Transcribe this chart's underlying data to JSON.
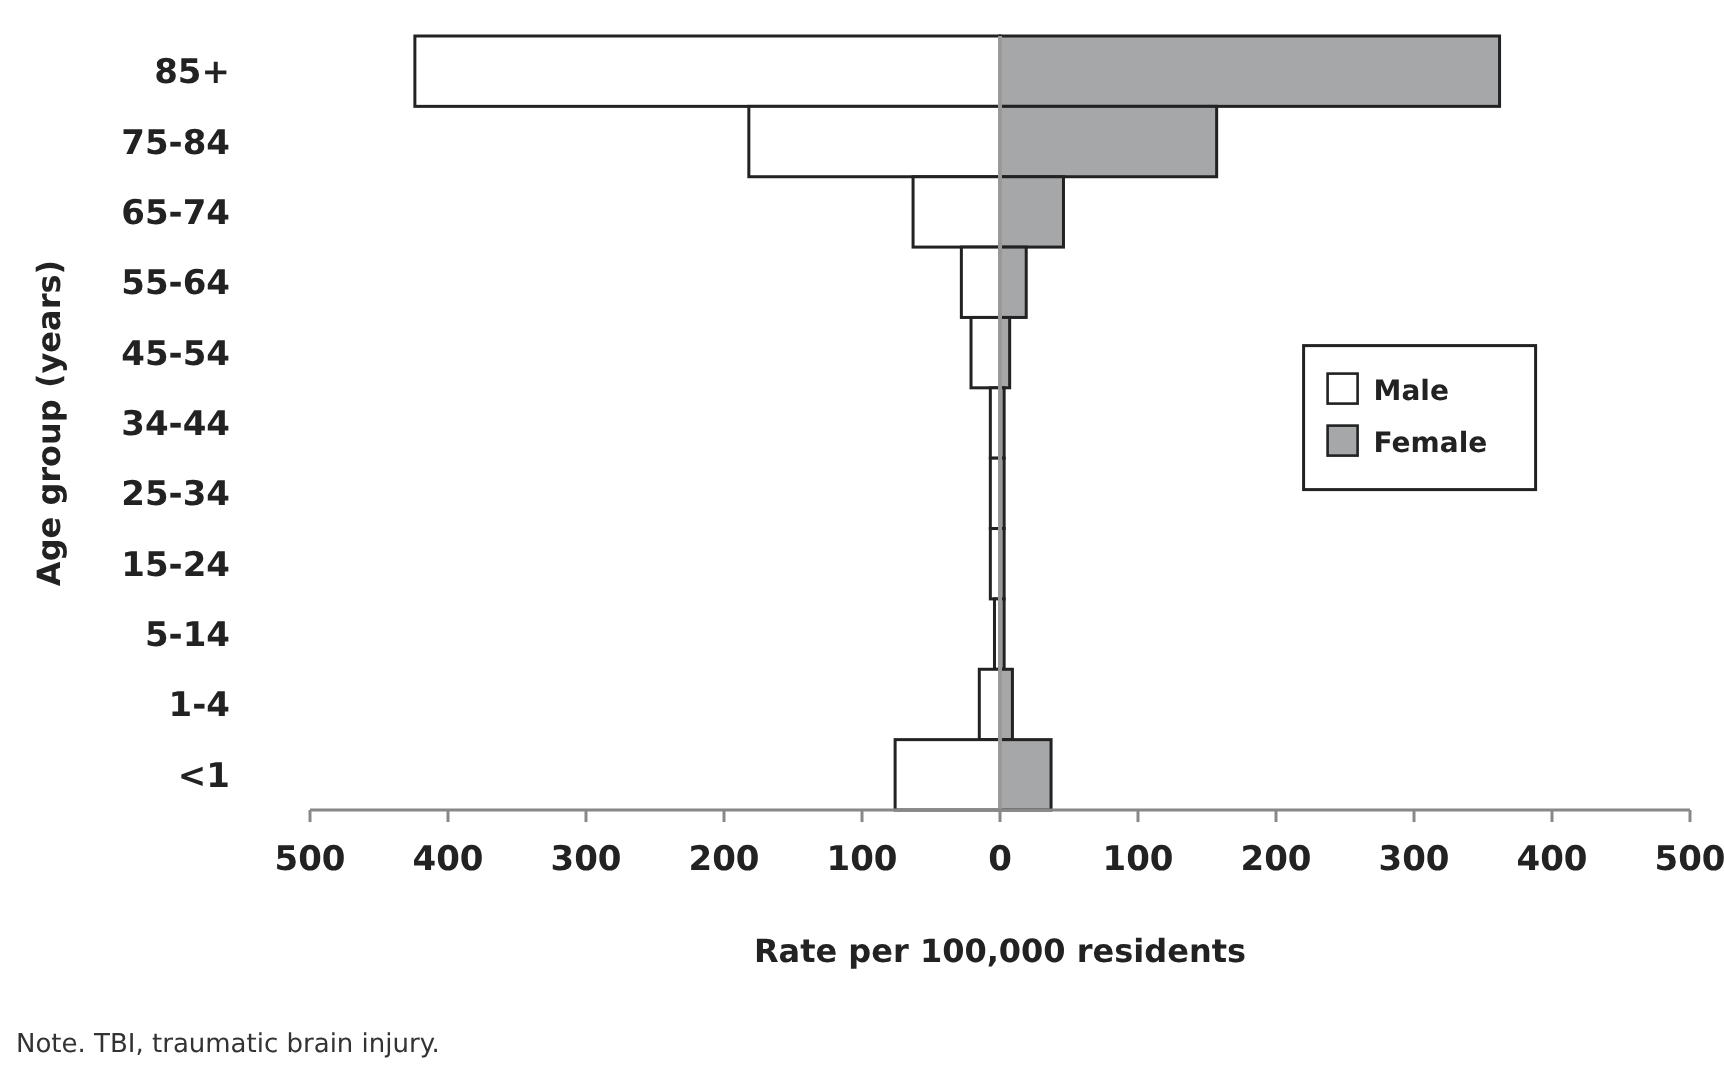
{
  "chart_data": {
    "type": "bar",
    "orientation": "horizontal",
    "stacked": true,
    "categories": [
      "85+",
      "75-84",
      "65-74",
      "55-64",
      "45-54",
      "34-44",
      "25-34",
      "15-24",
      "5-14",
      "1-4",
      "<1"
    ],
    "series": [
      {
        "name": "Male",
        "color": "#ffffff",
        "values": [
          -424,
          -182,
          -63,
          -28,
          -21,
          -7,
          -7,
          -7,
          -4,
          -15,
          -76
        ]
      },
      {
        "name": "Female",
        "color": "#a6a7a9",
        "values": [
          362,
          157,
          46,
          19,
          7,
          3,
          3,
          3,
          3,
          9,
          37
        ]
      }
    ],
    "xlim": [
      -500,
      500
    ],
    "xticks": [
      {
        "value": -500,
        "label": "500"
      },
      {
        "value": -400,
        "label": "400"
      },
      {
        "value": -300,
        "label": "300"
      },
      {
        "value": -200,
        "label": "200"
      },
      {
        "value": -100,
        "label": "100"
      },
      0,
      100,
      200,
      300,
      400,
      500
    ],
    "xlabel": "Rate per 100,000 residents",
    "ylabel": "Age group (years)",
    "legend": "right",
    "annotations": [
      "Note. TBI, traumatic brain injury."
    ]
  }
}
